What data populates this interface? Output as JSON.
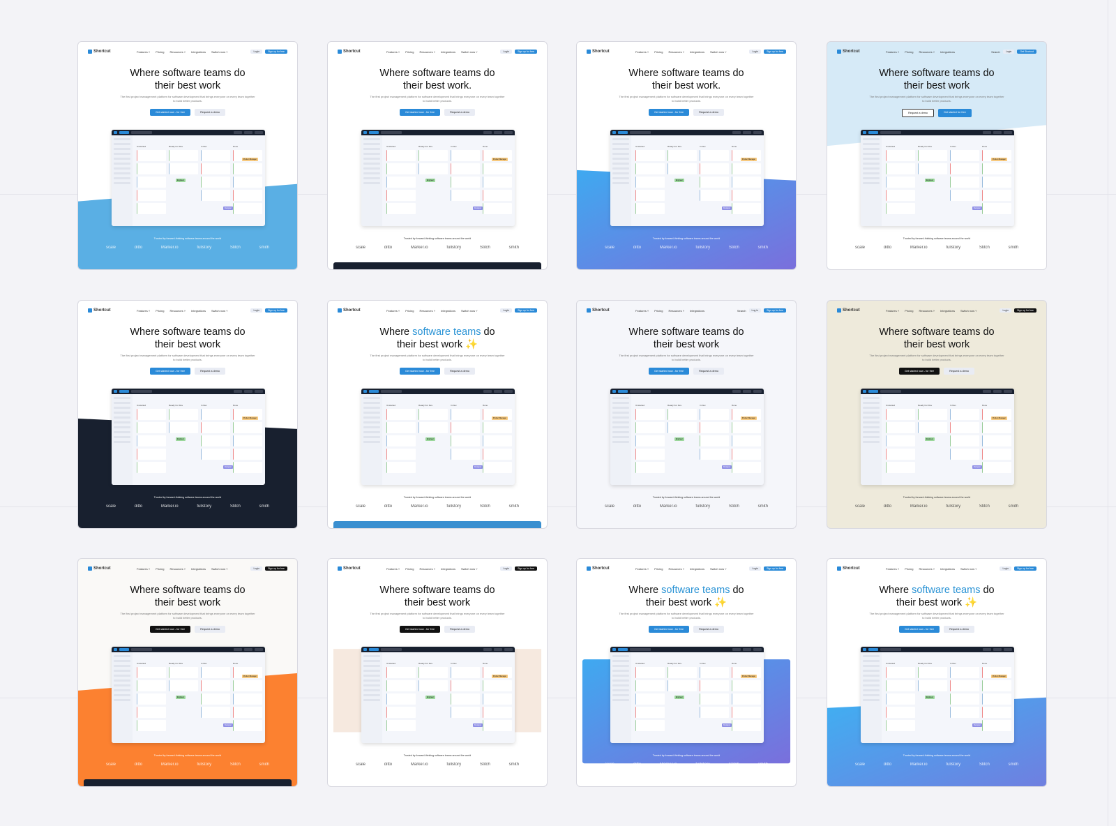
{
  "common": {
    "brand": "Shortcut",
    "nav": [
      "Features ˅",
      "Pricing",
      "Resources ˅",
      "Integrations",
      "Switch now ˅"
    ],
    "subtitle": "The first project management platform for software development that brings everyone on every team together to build better products.",
    "trusted": "Trusted by forward-thinking software teams around the world",
    "logos": [
      "scale",
      "ditto",
      "Marker.io",
      "fullstory",
      "Stitch",
      "smith"
    ],
    "columns": [
      "Unstarted",
      "Ready For Dev",
      "In Dev",
      "Done"
    ],
    "tags": [
      "Product Manager",
      "Engineer",
      "Designer"
    ]
  },
  "variants": [
    {
      "bg": "#ffffff",
      "wave": "blue",
      "h_pre": "Where ",
      "h_acc": "",
      "h_post": "software teams do",
      "h2": "their best work",
      "cta1": "Get started now - for free",
      "cta2": "Request a demo",
      "login": "Login",
      "signup": "Sign up for free",
      "search": "",
      "primary": "#2a8ad8",
      "bar": "",
      "text": "#111"
    },
    {
      "bg": "#ffffff",
      "wave": "none",
      "h_pre": "Where ",
      "h_acc": "",
      "h_post": "software teams do",
      "h2": "their best work.",
      "cta1": "Get started now - for free",
      "cta2": "Request a demo",
      "login": "Login",
      "signup": "Sign up for free",
      "search": "",
      "primary": "#2a8ad8",
      "bar": "#18202f",
      "text": "#111"
    },
    {
      "bg": "#ffffff",
      "wave": "bluepurple",
      "h_pre": "Where ",
      "h_acc": "",
      "h_post": "software teams do",
      "h2": "their best work.",
      "cta1": "Get started now - for free",
      "cta2": "Request a demo",
      "login": "Login",
      "signup": "Sign up for free",
      "search": "",
      "primary": "#2a8ad8",
      "bar": "",
      "text": "#111"
    },
    {
      "bg": "#d6eaf7",
      "wave": "whitebottom",
      "h_pre": "Where ",
      "h_acc": "",
      "h_post": "software teams do",
      "h2": "their best work",
      "cta1": "Request a demo",
      "cta2": "Get started for free",
      "login": "Login",
      "signup": "Get Shortcut",
      "search": "Search",
      "primary": "#2a8ad8",
      "bar": "",
      "text": "#111",
      "swap": true
    },
    {
      "bg": "#ffffff",
      "wave": "navy",
      "h_pre": "Where ",
      "h_acc": "",
      "h_post": "software teams do",
      "h2": "their best work",
      "cta1": "Get started now - for free",
      "cta2": "Request a demo",
      "login": "Login",
      "signup": "Sign up for free",
      "search": "",
      "primary": "#2a8ad8",
      "bar": "",
      "text": "#111"
    },
    {
      "bg": "#ffffff",
      "wave": "none",
      "h_pre": "Where ",
      "h_acc": "software teams",
      "h_post": " do",
      "h2": "their best work ✨",
      "cta1": "Get started now - for free",
      "cta2": "Request a demo",
      "login": "Login",
      "signup": "Sign up for free",
      "search": "",
      "primary": "#2a8ad8",
      "bar": "#3a8fd0",
      "text": "#111"
    },
    {
      "bg": "#f5f6fa",
      "wave": "none",
      "h_pre": "Where ",
      "h_acc": "",
      "h_post": "software teams do",
      "h2": "their best work",
      "cta1": "Get started now - for free",
      "cta2": "Request a demo",
      "login": "Log in",
      "signup": "Sign up for free",
      "search": "Search",
      "primary": "#2a8ad8",
      "bar": "",
      "text": "#111"
    },
    {
      "bg": "#eeeadb",
      "wave": "none",
      "h_pre": "Where ",
      "h_acc": "",
      "h_post": "software teams do",
      "h2": "their best work",
      "cta1": "Get started now - for free",
      "cta2": "Request a demo",
      "login": "Login",
      "signup": "Sign up for free",
      "search": "",
      "primary": "#111111",
      "bar": "",
      "text": "#111"
    },
    {
      "bg": "#faf9f7",
      "wave": "orange",
      "h_pre": "Where ",
      "h_acc": "",
      "h_post": "software teams do",
      "h2": "their best work",
      "cta1": "Get started now - for free",
      "cta2": "Request a demo",
      "login": "Login",
      "signup": "Sign up for free",
      "search": "",
      "primary": "#111111",
      "bar": "#18202f",
      "text": "#111"
    },
    {
      "bg": "#ffffff",
      "wave": "peach",
      "h_pre": "Where ",
      "h_acc": "",
      "h_post": "software teams do",
      "h2": "their best work",
      "cta1": "Get started now - for free",
      "cta2": "Request a demo",
      "login": "Login",
      "signup": "Sign up for free",
      "search": "",
      "primary": "#111111",
      "bar": "",
      "text": "#111"
    },
    {
      "bg": "#ffffff",
      "wave": "panel",
      "h_pre": "Where ",
      "h_acc": "software teams",
      "h_post": " do",
      "h2": "their best work ✨",
      "cta1": "Get started now - for free",
      "cta2": "Request a demo",
      "login": "Login",
      "signup": "Sign up for free",
      "search": "",
      "primary": "#2a8ad8",
      "bar": "",
      "text": "#111"
    },
    {
      "bg": "#ffffff",
      "wave": "bluegrad",
      "h_pre": "Where ",
      "h_acc": "software teams",
      "h_post": " do",
      "h2": "their best work ✨",
      "cta1": "Get started now - for free",
      "cta2": "Request a demo",
      "login": "Login",
      "signup": "Sign up for free",
      "search": "",
      "primary": "#2a8ad8",
      "bar": "",
      "text": "#111"
    }
  ]
}
